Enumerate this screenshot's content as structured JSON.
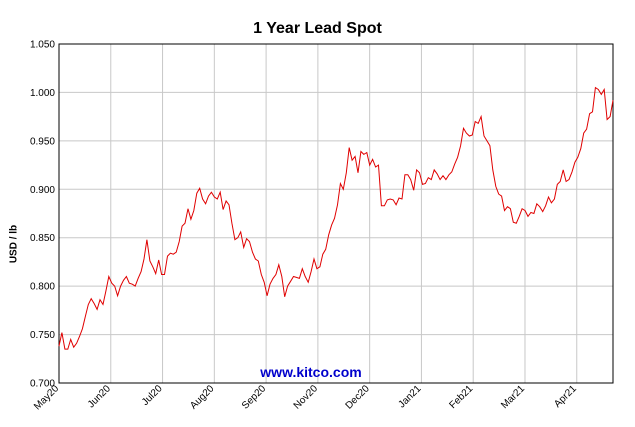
{
  "chart_data": {
    "type": "line",
    "title": "1 Year Lead Spot",
    "xlabel": "",
    "ylabel": "USD / lb",
    "watermark": "www.kitco.com",
    "ylim": [
      0.7,
      1.05
    ],
    "y_ticks": [
      "0.700",
      "0.750",
      "0.800",
      "0.850",
      "0.900",
      "0.950",
      "1.000",
      "1.050"
    ],
    "x_ticks": [
      "May20",
      "Jun20",
      "Jul20",
      "Aug20",
      "Sep20",
      "Nov20",
      "Dec20",
      "Jan21",
      "Feb21",
      "Mar21",
      "Apr21"
    ],
    "line_color": "#e00000",
    "watermark_color": "#0000cc",
    "grid": true,
    "values": [
      0.738,
      0.752,
      0.735,
      0.735,
      0.745,
      0.737,
      0.741,
      0.748,
      0.756,
      0.769,
      0.781,
      0.787,
      0.782,
      0.776,
      0.786,
      0.781,
      0.795,
      0.81,
      0.803,
      0.8,
      0.79,
      0.8,
      0.806,
      0.81,
      0.803,
      0.802,
      0.8,
      0.808,
      0.815,
      0.828,
      0.848,
      0.826,
      0.82,
      0.813,
      0.827,
      0.812,
      0.812,
      0.831,
      0.834,
      0.833,
      0.835,
      0.846,
      0.862,
      0.865,
      0.88,
      0.869,
      0.878,
      0.896,
      0.901,
      0.89,
      0.885,
      0.893,
      0.897,
      0.892,
      0.89,
      0.897,
      0.879,
      0.888,
      0.884,
      0.865,
      0.848,
      0.85,
      0.856,
      0.84,
      0.849,
      0.846,
      0.835,
      0.828,
      0.826,
      0.812,
      0.804,
      0.79,
      0.802,
      0.808,
      0.812,
      0.822,
      0.81,
      0.789,
      0.8,
      0.805,
      0.81,
      0.809,
      0.808,
      0.818,
      0.81,
      0.804,
      0.815,
      0.828,
      0.818,
      0.82,
      0.833,
      0.838,
      0.853,
      0.863,
      0.87,
      0.884,
      0.906,
      0.9,
      0.917,
      0.943,
      0.93,
      0.934,
      0.917,
      0.939,
      0.936,
      0.938,
      0.925,
      0.931,
      0.923,
      0.925,
      0.883,
      0.883,
      0.889,
      0.89,
      0.889,
      0.884,
      0.891,
      0.89,
      0.915,
      0.915,
      0.91,
      0.899,
      0.92,
      0.917,
      0.905,
      0.906,
      0.912,
      0.91,
      0.92,
      0.916,
      0.91,
      0.914,
      0.91,
      0.915,
      0.918,
      0.926,
      0.933,
      0.945,
      0.963,
      0.958,
      0.955,
      0.956,
      0.97,
      0.968,
      0.975,
      0.955,
      0.95,
      0.945,
      0.92,
      0.903,
      0.895,
      0.893,
      0.878,
      0.882,
      0.88,
      0.866,
      0.865,
      0.872,
      0.88,
      0.878,
      0.872,
      0.876,
      0.875,
      0.885,
      0.882,
      0.877,
      0.883,
      0.892,
      0.886,
      0.89,
      0.905,
      0.908,
      0.92,
      0.908,
      0.91,
      0.918,
      0.928,
      0.933,
      0.942,
      0.958,
      0.962,
      0.978,
      0.98,
      1.005,
      1.003,
      0.998,
      1.003,
      0.972,
      0.975,
      0.992
    ]
  }
}
